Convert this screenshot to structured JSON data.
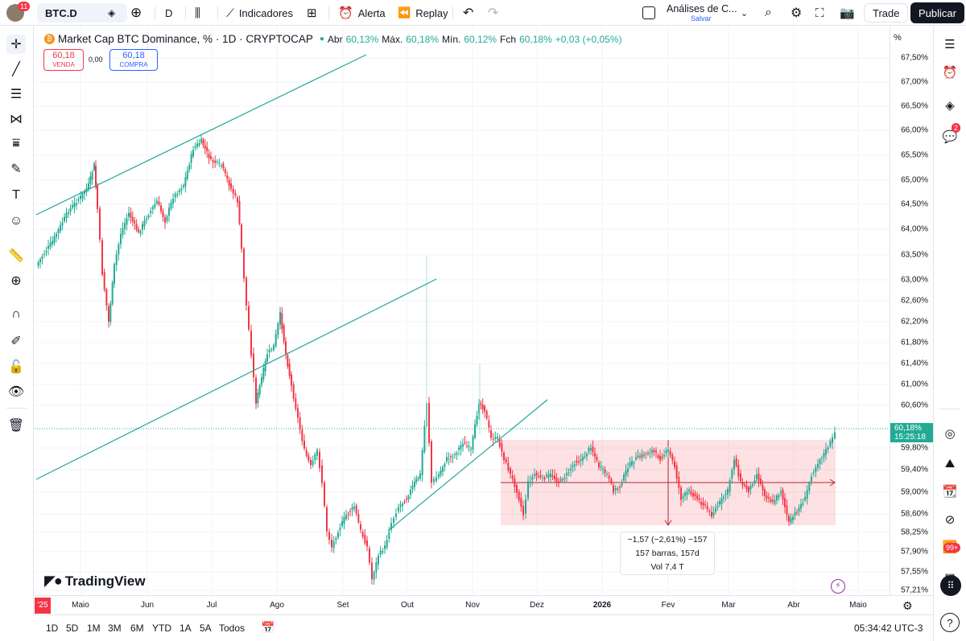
{
  "topbar": {
    "avatar_badge": "11",
    "symbol": "BTC.D",
    "interval": "D",
    "indicators": "Indicadores",
    "alert": "Alerta",
    "replay": "Replay",
    "layout_name": "Análises de C...",
    "layout_status": "Salvar",
    "trade": "Trade",
    "publish": "Publicar"
  },
  "legend": {
    "title": "Market Cap BTC Dominance, % · 1D · CRYPTOCAP",
    "open_label": "Abr",
    "open_value": "60,13%",
    "high_label": "Máx.",
    "high_value": "60,18%",
    "low_label": "Mín.",
    "low_value": "60,12%",
    "close_label": "Fch",
    "close_value": "60,18%",
    "change": "+0,03 (+0,05%)"
  },
  "trade_box": {
    "sell_price": "60,18",
    "sell_label": "VENDA",
    "spread": "0,00",
    "buy_price": "60,18",
    "buy_label": "COMPRA"
  },
  "price_axis": {
    "unit": "%",
    "ticks": [
      "67,50%",
      "67,00%",
      "66,50%",
      "66,00%",
      "65,50%",
      "65,00%",
      "64,50%",
      "64,00%",
      "63,50%",
      "63,00%",
      "62,60%",
      "62,20%",
      "61,80%",
      "61,40%",
      "61,00%",
      "60,60%",
      "59,80%",
      "59,40%",
      "59,00%",
      "58,60%",
      "58,25%",
      "57,90%",
      "57,55%",
      "57,21%"
    ],
    "current_price": "60,18%",
    "countdown": "15:25:18"
  },
  "time_axis": {
    "ticks": [
      "Maio",
      "Jun",
      "Jul",
      "Ago",
      "Set",
      "Out",
      "Nov",
      "Dez",
      "2026",
      "Fev",
      "Mar",
      "Abr",
      "Maio"
    ],
    "left_partial": "'25"
  },
  "measure": {
    "line1": "−1,57 (−2,61%) −157",
    "line2": "157 barras, 157d",
    "line3": "Vol 7,4 T"
  },
  "watermark": "TradingView",
  "bottombar": {
    "ranges": [
      "1D",
      "5D",
      "1M",
      "3M",
      "6M",
      "YTD",
      "1A",
      "5A",
      "Todos"
    ],
    "clock": "05:34:42 UTC-3"
  },
  "rightbar": {
    "notif_badge": "2",
    "news_badge": "99+"
  },
  "colors": {
    "up": "#22ab94",
    "down": "#f23645",
    "accent": "#2962ff",
    "trendline": "#26a69a",
    "zone": "#f8bbd0"
  }
}
